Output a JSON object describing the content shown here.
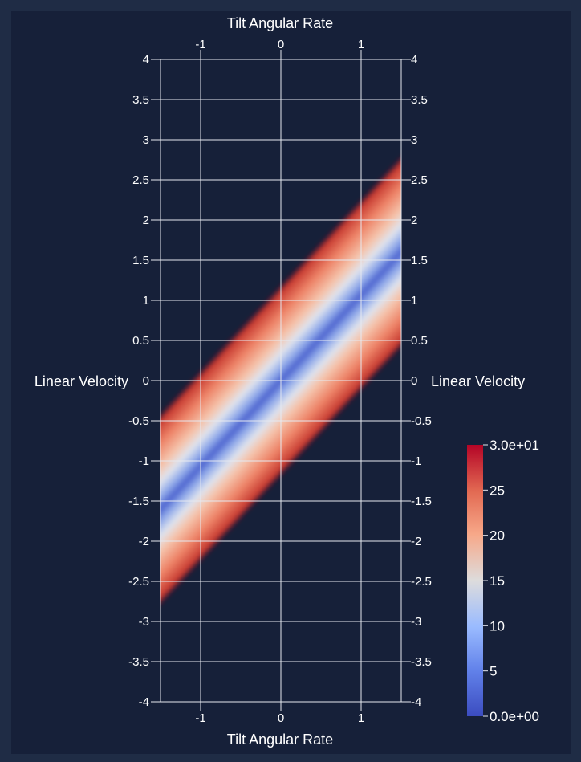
{
  "colors": {
    "background": "#162039",
    "outer_border": "#1f2c45",
    "grid": "#e6e9f0",
    "text": "#ffffff",
    "colormap_low": "#3b4cc0",
    "colormap_mid": "#dddddd",
    "colormap_high": "#b40426"
  },
  "chart_data": {
    "type": "heatmap",
    "xlabel": "Tilt Angular Rate",
    "ylabel": "Linear Velocity",
    "xlim": [
      -1.5,
      1.5
    ],
    "ylim": [
      -4,
      4
    ],
    "x_ticks": [
      "-1",
      "0",
      "1"
    ],
    "x_tick_values": [
      -1,
      0,
      1
    ],
    "y_ticks": [
      "4",
      "3.5",
      "3",
      "2.5",
      "2",
      "1.5",
      "1",
      "0.5",
      "0",
      "-0.5",
      "-1",
      "-1.5",
      "-2",
      "-2.5",
      "-3",
      "-3.5",
      "-4"
    ],
    "y_tick_values": [
      4,
      3.5,
      3,
      2.5,
      2,
      1.5,
      1,
      0.5,
      0,
      -0.5,
      -1,
      -1.5,
      -2,
      -2.5,
      -3,
      -3.5,
      -4
    ],
    "grid": true,
    "axes_on_all_sides": true,
    "colormap": "coolwarm",
    "colorbar": {
      "min": 0,
      "max": 30,
      "labels": [
        "3.0e+01",
        "25",
        "20",
        "15",
        "10",
        "5",
        "0.0e+00"
      ],
      "label_values": [
        30,
        25,
        20,
        15,
        10,
        5,
        0
      ],
      "placement": "right"
    },
    "band": {
      "description_free": true,
      "center_line": [
        [
          -1.5,
          -1.6
        ],
        [
          1.5,
          1.6
        ]
      ],
      "valley_value": 0,
      "edge_value": 30,
      "half_width_y": 1.2
    }
  }
}
